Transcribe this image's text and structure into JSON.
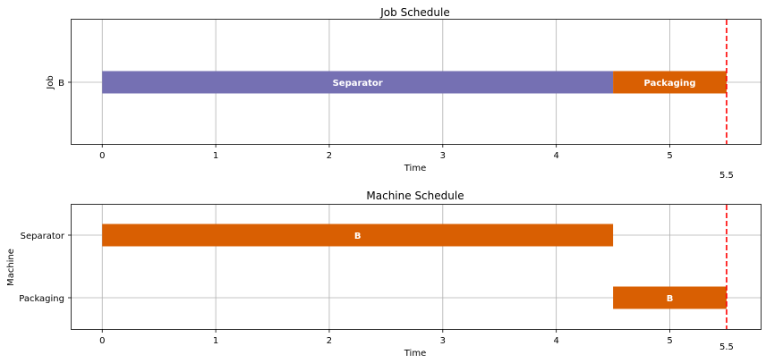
{
  "chart_data": [
    {
      "type": "gantt",
      "title": "Job Schedule",
      "xlabel": "Time",
      "ylabel": "Job",
      "xlim": [
        -0.27,
        5.8
      ],
      "xticks": [
        "0",
        "1",
        "2",
        "3",
        "4",
        "5"
      ],
      "categories": [
        "B"
      ],
      "grid": true,
      "makespan": 5.5,
      "makespan_label": "5.5",
      "makespan_color": "#ff0000",
      "bars": [
        {
          "row": "B",
          "start": 0,
          "end": 4.5,
          "label": "Separator",
          "color": "#7570b3"
        },
        {
          "row": "B",
          "start": 4.5,
          "end": 5.5,
          "label": "Packaging",
          "color": "#d95f02"
        }
      ]
    },
    {
      "type": "gantt",
      "title": "Machine Schedule",
      "xlabel": "Time",
      "ylabel": "Machine",
      "xlim": [
        -0.27,
        5.8
      ],
      "xticks": [
        "0",
        "1",
        "2",
        "3",
        "4",
        "5"
      ],
      "categories": [
        "Separator",
        "Packaging"
      ],
      "grid": true,
      "makespan": 5.5,
      "makespan_label": "5.5",
      "makespan_color": "#ff0000",
      "bars": [
        {
          "row": "Separator",
          "start": 0,
          "end": 4.5,
          "label": "B",
          "color": "#d95f02"
        },
        {
          "row": "Packaging",
          "start": 4.5,
          "end": 5.5,
          "label": "B",
          "color": "#d95f02"
        }
      ]
    }
  ]
}
